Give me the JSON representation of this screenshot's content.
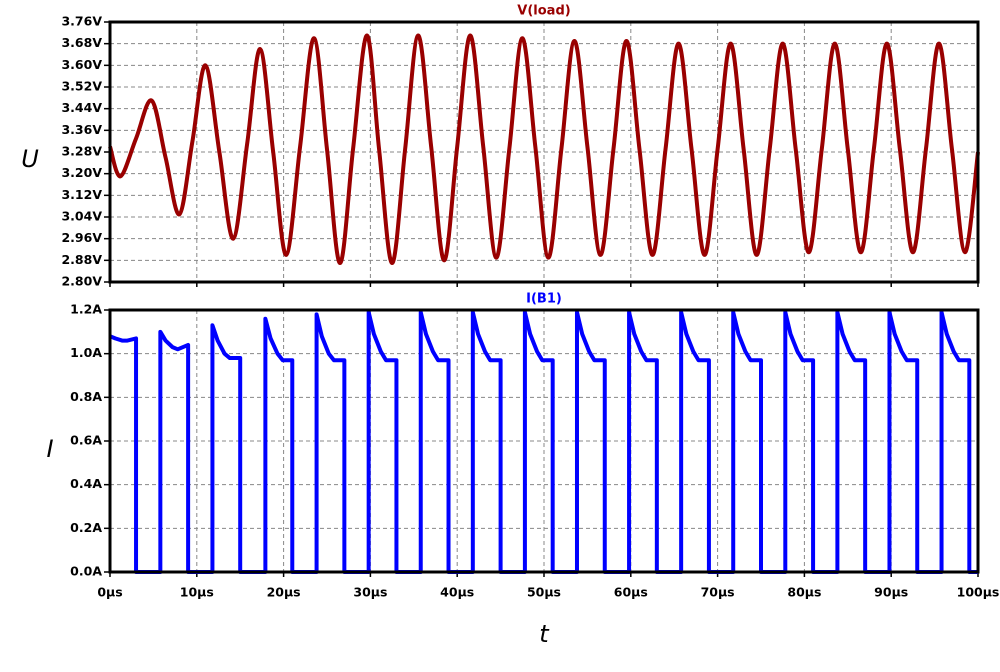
{
  "chart_data": [
    {
      "type": "line",
      "title": "V(load)",
      "y_label": "U",
      "color": "#990000",
      "smooth": true,
      "grid": true,
      "xlim": [
        0,
        100
      ],
      "xticks": [
        0,
        10,
        20,
        30,
        40,
        50,
        60,
        70,
        80,
        90,
        100
      ],
      "ylim": [
        2.8,
        3.76
      ],
      "yticks": [
        {
          "value": 2.8,
          "label": "2.80V"
        },
        {
          "value": 2.88,
          "label": "2.88V"
        },
        {
          "value": 2.96,
          "label": "2.96V"
        },
        {
          "value": 3.04,
          "label": "3.04V"
        },
        {
          "value": 3.12,
          "label": "3.12V"
        },
        {
          "value": 3.2,
          "label": "3.20V"
        },
        {
          "value": 3.28,
          "label": "3.28V"
        },
        {
          "value": 3.36,
          "label": "3.36V"
        },
        {
          "value": 3.44,
          "label": "3.44V"
        },
        {
          "value": 3.52,
          "label": "3.52V"
        },
        {
          "value": 3.6,
          "label": "3.60V"
        },
        {
          "value": 3.68,
          "label": "3.68V"
        },
        {
          "value": 3.76,
          "label": "3.76V"
        }
      ],
      "x": [
        0,
        1.2,
        3.0,
        4.8,
        6.4,
        8.0,
        9.5,
        11.0,
        12.6,
        14.2,
        15.8,
        17.3,
        18.8,
        20.3,
        21.9,
        23.5,
        25.0,
        26.5,
        28.0,
        29.6,
        31.0,
        32.5,
        34.0,
        35.5,
        37.0,
        38.5,
        40.0,
        41.5,
        43.0,
        44.5,
        46.0,
        47.5,
        49.0,
        50.5,
        52.0,
        53.5,
        55.0,
        56.5,
        58.0,
        59.5,
        61.0,
        62.5,
        64.0,
        65.5,
        67.0,
        68.5,
        70.0,
        71.5,
        73.0,
        74.5,
        76.0,
        77.5,
        79.0,
        80.5,
        82.0,
        83.5,
        85.0,
        86.5,
        88.0,
        89.5,
        91.0,
        92.5,
        94.0,
        95.5,
        97.0,
        98.5,
        100
      ],
      "values": [
        3.3,
        3.19,
        3.33,
        3.47,
        3.26,
        3.05,
        3.32,
        3.6,
        3.28,
        2.96,
        3.31,
        3.66,
        3.28,
        2.9,
        3.3,
        3.7,
        3.29,
        2.87,
        3.29,
        3.71,
        3.29,
        2.87,
        3.29,
        3.71,
        3.3,
        2.88,
        3.3,
        3.71,
        3.3,
        2.89,
        3.29,
        3.7,
        3.3,
        2.89,
        3.29,
        3.69,
        3.3,
        2.9,
        3.29,
        3.69,
        3.29,
        2.9,
        3.29,
        3.68,
        3.29,
        2.9,
        3.29,
        3.68,
        3.29,
        2.9,
        3.29,
        3.68,
        3.29,
        2.91,
        3.29,
        3.68,
        3.29,
        2.91,
        3.29,
        3.68,
        3.29,
        2.91,
        3.29,
        3.68,
        3.29,
        2.91,
        3.28
      ]
    },
    {
      "type": "line",
      "title": "I(B1)",
      "y_label": "I",
      "x_label": "t",
      "color": "#0000ff",
      "smooth": false,
      "grid": true,
      "xlim": [
        0,
        100
      ],
      "xticks": [
        {
          "value": 0,
          "label": "0µs"
        },
        {
          "value": 10,
          "label": "10µs"
        },
        {
          "value": 20,
          "label": "20µs"
        },
        {
          "value": 30,
          "label": "30µs"
        },
        {
          "value": 40,
          "label": "40µs"
        },
        {
          "value": 50,
          "label": "50µs"
        },
        {
          "value": 60,
          "label": "60µs"
        },
        {
          "value": 70,
          "label": "70µs"
        },
        {
          "value": 80,
          "label": "80µs"
        },
        {
          "value": 90,
          "label": "90µs"
        },
        {
          "value": 100,
          "label": "100µs"
        }
      ],
      "ylim": [
        0,
        1.2
      ],
      "yticks": [
        {
          "value": 0,
          "label": "0.0A"
        },
        {
          "value": 0.2,
          "label": "0.2A"
        },
        {
          "value": 0.4,
          "label": "0.4A"
        },
        {
          "value": 0.6,
          "label": "0.6A"
        },
        {
          "value": 0.8,
          "label": "0.8A"
        },
        {
          "value": 1.0,
          "label": "1.0A"
        },
        {
          "value": 1.2,
          "label": "1.2A"
        }
      ],
      "x": [
        0,
        0.6,
        1.4,
        2.0,
        3.0,
        3.0,
        5.8,
        5.8,
        6.4,
        7.2,
        7.8,
        9.0,
        9.0,
        11.8,
        11.8,
        12.4,
        13.2,
        13.8,
        15.0,
        15.0,
        17.9,
        17.9,
        18.5,
        19.3,
        19.9,
        21.0,
        21.0,
        23.8,
        23.8,
        24.4,
        25.2,
        25.8,
        27.0,
        27.0,
        29.8,
        29.8,
        30.4,
        31.2,
        31.8,
        33.0,
        33.0,
        35.8,
        35.8,
        36.4,
        37.2,
        37.8,
        39.0,
        39.0,
        41.8,
        41.8,
        42.4,
        43.2,
        43.8,
        45.0,
        45.0,
        47.8,
        47.8,
        48.4,
        49.2,
        49.8,
        51.0,
        51.0,
        53.8,
        53.8,
        54.4,
        55.2,
        55.8,
        57.0,
        57.0,
        59.8,
        59.8,
        60.4,
        61.2,
        61.8,
        63.0,
        63.0,
        65.8,
        65.8,
        66.4,
        67.2,
        67.8,
        69.0,
        69.0,
        71.8,
        71.8,
        72.4,
        73.2,
        73.8,
        75.0,
        75.0,
        77.8,
        77.8,
        78.4,
        79.2,
        79.8,
        81.0,
        81.0,
        83.8,
        83.8,
        84.4,
        85.2,
        85.8,
        87.0,
        87.0,
        89.8,
        89.8,
        90.4,
        91.2,
        91.8,
        93.0,
        93.0,
        95.8,
        95.8,
        96.4,
        97.2,
        97.8,
        99.0,
        99.0,
        100
      ],
      "values": [
        1.08,
        1.07,
        1.06,
        1.06,
        1.07,
        0,
        0,
        1.1,
        1.06,
        1.03,
        1.02,
        1.04,
        0,
        0,
        1.13,
        1.06,
        1.0,
        0.98,
        0.98,
        0,
        0,
        1.16,
        1.07,
        1.0,
        0.97,
        0.97,
        0,
        0,
        1.18,
        1.08,
        1.0,
        0.97,
        0.97,
        0,
        0,
        1.19,
        1.09,
        1.01,
        0.97,
        0.97,
        0,
        0,
        1.19,
        1.09,
        1.01,
        0.97,
        0.97,
        0,
        0,
        1.19,
        1.09,
        1.01,
        0.97,
        0.97,
        0,
        0,
        1.19,
        1.09,
        1.01,
        0.97,
        0.97,
        0,
        0,
        1.19,
        1.09,
        1.01,
        0.97,
        0.97,
        0,
        0,
        1.19,
        1.09,
        1.01,
        0.97,
        0.97,
        0,
        0,
        1.19,
        1.09,
        1.01,
        0.97,
        0.97,
        0,
        0,
        1.19,
        1.09,
        1.01,
        0.97,
        0.97,
        0,
        0,
        1.19,
        1.09,
        1.01,
        0.97,
        0.97,
        0,
        0,
        1.19,
        1.09,
        1.01,
        0.97,
        0.97,
        0,
        0,
        1.19,
        1.09,
        1.01,
        0.97,
        0.97,
        0,
        0,
        1.19,
        1.09,
        1.01,
        0.97,
        0.97,
        0,
        0
      ]
    }
  ]
}
